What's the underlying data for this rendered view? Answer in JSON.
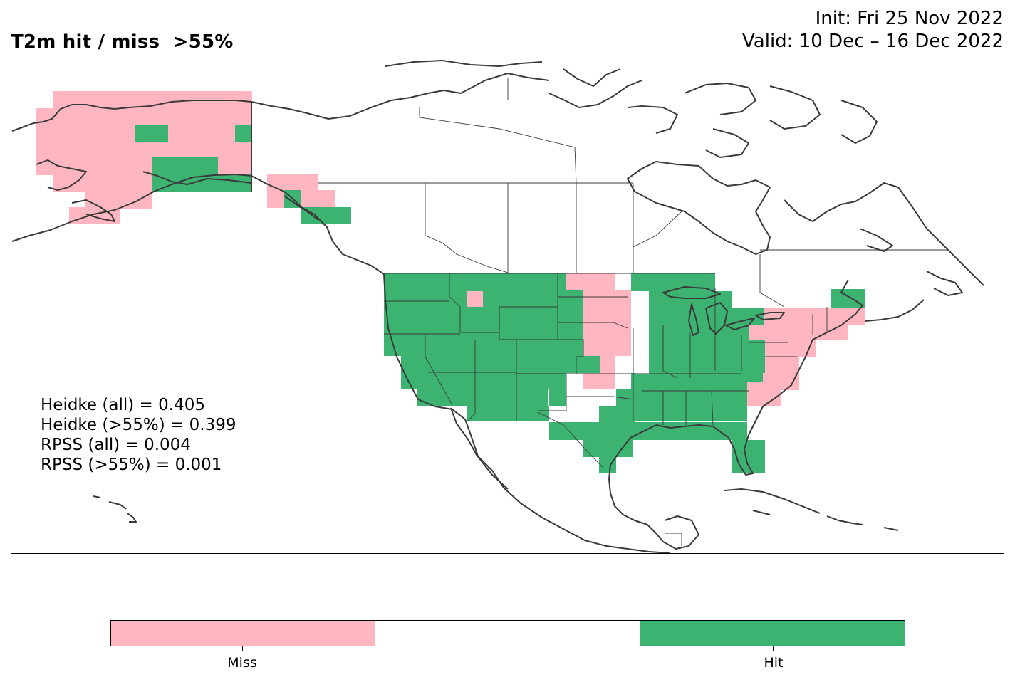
{
  "header": {
    "title": "T2m hit / miss  >55%",
    "init_line": "Init: Fri 25 Nov 2022",
    "valid_line": "Valid: 10 Dec – 16 Dec 2022"
  },
  "scores": [
    "Heidke (all) = 0.405",
    "Heidke (>55%) = 0.399",
    "RPSS (all) = 0.004",
    "RPSS (>55%) = 0.001"
  ],
  "colors": {
    "miss": "#FFB6C1",
    "neutral": "#FFFFFF",
    "hit": "#3CB371",
    "coast": "#3a3a3a"
  },
  "colorbar": {
    "categories": [
      "Miss",
      "",
      "Hit"
    ],
    "tick_labels": [
      "Miss",
      "Hit"
    ]
  }
}
